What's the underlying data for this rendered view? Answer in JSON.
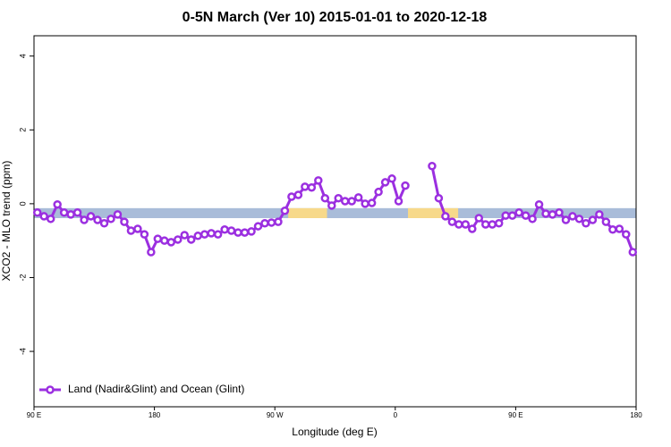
{
  "chart_data": {
    "type": "line",
    "title": "0-5N March (Ver 10)   2015-01-01 to 2020-12-18",
    "x_label": "Longitude (deg E)",
    "y_label": "XCO2 - MLO trend (ppm)",
    "xlim": [
      90,
      540
    ],
    "ylim": [
      -5.5,
      4.55
    ],
    "xticks": [
      {
        "value": 90,
        "label": "90 E"
      },
      180,
      {
        "value": 270,
        "label": "90 W"
      },
      {
        "value": 360,
        "label": "0"
      },
      {
        "value": 450,
        "label": "90 E"
      },
      {
        "value": 540,
        "label": "180"
      }
    ],
    "yticks": [
      -4,
      -2,
      0,
      2,
      4
    ],
    "band_ylim": [
      -0.39,
      -0.12
    ],
    "bands": [
      {
        "x": [
          90,
          540
        ],
        "color": "#a9bcd9"
      },
      {
        "x": [
          280,
          309
        ],
        "color": "#f7d98a"
      },
      {
        "x": [
          369.5,
          407
        ],
        "color": "#f7d98a"
      }
    ],
    "legend": "bottom-left",
    "x": [
      92.5,
      97.5,
      102.5,
      107.5,
      112.5,
      117.5,
      122.5,
      127.5,
      132.5,
      137.5,
      142.5,
      147.5,
      152.5,
      157.5,
      162.5,
      167.5,
      172.5,
      177.5,
      182.5,
      187.5,
      192.5,
      197.5,
      202.5,
      207.5,
      212.5,
      217.5,
      222.5,
      227.5,
      232.5,
      237.5,
      242.5,
      247.5,
      252.5,
      257.5,
      262.5,
      267.5,
      272.5,
      277.5,
      282.5,
      287.5,
      292.5,
      297.5,
      302.5,
      307.5,
      312.5,
      317.5,
      322.5,
      327.5,
      332.5,
      337.5,
      342.5,
      347.5,
      352.5,
      357.5,
      362.5,
      367.5,
      372.5,
      377.5,
      382.5,
      387.5,
      392.5,
      397.5,
      402.5,
      407.5,
      412.5,
      417.5,
      422.5,
      427.5,
      432.5,
      437.5,
      442.5,
      447.5,
      452.5,
      457.5,
      462.5,
      467.5,
      472.5,
      477.5,
      482.5,
      487.5,
      492.5,
      497.5,
      502.5,
      507.5,
      512.5,
      517.5,
      522.5,
      527.5,
      532.5,
      537.5
    ],
    "series": [
      {
        "name": "Land (Nadir&Glint) and Ocean (Glint)",
        "color": "#9b2fe0",
        "values": [
          -0.24,
          -0.34,
          -0.41,
          -0.02,
          -0.24,
          -0.29,
          -0.24,
          -0.44,
          -0.34,
          -0.44,
          -0.53,
          -0.41,
          -0.29,
          -0.49,
          -0.73,
          -0.68,
          -0.83,
          -1.31,
          -0.95,
          -1.0,
          -1.04,
          -0.97,
          -0.85,
          -0.97,
          -0.87,
          -0.83,
          -0.8,
          -0.83,
          -0.7,
          -0.73,
          -0.78,
          -0.78,
          -0.75,
          -0.61,
          -0.53,
          -0.51,
          -0.49,
          -0.19,
          0.19,
          0.24,
          0.46,
          0.44,
          0.63,
          0.15,
          -0.05,
          0.15,
          0.07,
          0.07,
          0.17,
          0,
          0.02,
          0.32,
          0.58,
          0.68,
          0.07,
          0.49,
          null,
          null,
          null,
          1.02,
          0.15,
          -0.34,
          -0.49,
          -0.56,
          -0.56,
          -0.68,
          -0.39,
          -0.56,
          -0.56,
          -0.53,
          -0.32,
          -0.32,
          -0.24,
          -0.32,
          -0.41,
          -0.02,
          -0.27,
          -0.29,
          -0.24,
          -0.44,
          -0.34,
          -0.41,
          -0.53,
          -0.44,
          -0.29,
          -0.49,
          -0.7,
          -0.68,
          -0.83,
          -1.31
        ]
      }
    ]
  }
}
